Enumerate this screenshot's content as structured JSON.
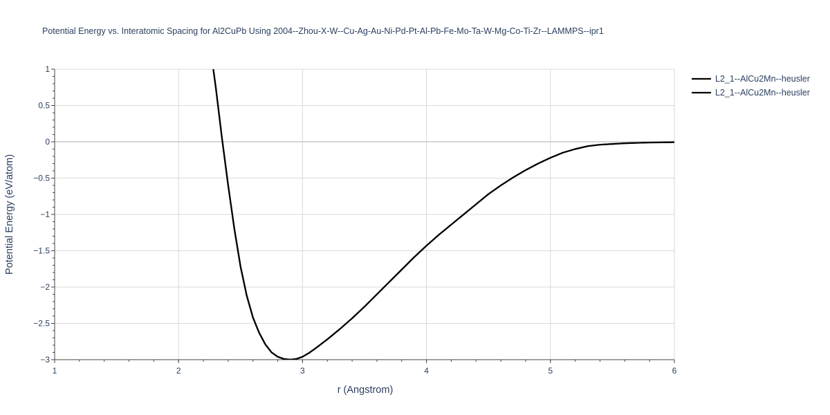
{
  "chart_data": {
    "type": "line",
    "title": "Potential Energy vs. Interatomic Spacing for Al2CuPb Using 2004--Zhou-X-W--Cu-Ag-Au-Ni-Pd-Pt-Al-Pb-Fe-Mo-Ta-W-Mg-Co-Ti-Zr--LAMMPS--ipr1",
    "xlabel": "r (Angstrom)",
    "ylabel": "Potential Energy (eV/atom)",
    "xlim": [
      1,
      6
    ],
    "ylim": [
      -3,
      1
    ],
    "x_ticks": [
      "1",
      "2",
      "3",
      "4",
      "5",
      "6"
    ],
    "y_ticks": [
      "1",
      "0.5",
      "0",
      "−0.5",
      "−1",
      "−1.5",
      "−2",
      "−2.5",
      "−3"
    ],
    "grid": true,
    "legend_position": "top-right",
    "series": [
      {
        "name": "L2_1--AlCu2Mn--heusler",
        "color": "#000000",
        "x": [
          2.28,
          2.3,
          2.35,
          2.4,
          2.45,
          2.5,
          2.55,
          2.6,
          2.65,
          2.7,
          2.75,
          2.8,
          2.85,
          2.9,
          2.95,
          3.0,
          3.05,
          3.1,
          3.2,
          3.3,
          3.4,
          3.5,
          3.6,
          3.7,
          3.8,
          3.9,
          4.0,
          4.1,
          4.2,
          4.3,
          4.4,
          4.5,
          4.6,
          4.7,
          4.8,
          4.9,
          5.0,
          5.1,
          5.2,
          5.3,
          5.4,
          5.5,
          5.6,
          5.7,
          5.8,
          5.9,
          6.0
        ],
        "y": [
          1.0,
          0.75,
          0.05,
          -0.6,
          -1.2,
          -1.72,
          -2.12,
          -2.42,
          -2.63,
          -2.79,
          -2.9,
          -2.96,
          -2.99,
          -3.0,
          -2.99,
          -2.96,
          -2.91,
          -2.85,
          -2.72,
          -2.58,
          -2.43,
          -2.27,
          -2.1,
          -1.93,
          -1.76,
          -1.59,
          -1.43,
          -1.28,
          -1.14,
          -1.0,
          -0.86,
          -0.72,
          -0.6,
          -0.49,
          -0.39,
          -0.3,
          -0.22,
          -0.15,
          -0.1,
          -0.06,
          -0.04,
          -0.03,
          -0.02,
          -0.015,
          -0.01,
          -0.008,
          -0.005
        ]
      },
      {
        "name": "L2_1--AlCu2Mn--heusler",
        "color": "#000000",
        "x": [
          2.28,
          2.3,
          2.35,
          2.4,
          2.45,
          2.5,
          2.55,
          2.6,
          2.65,
          2.7,
          2.75,
          2.8,
          2.85,
          2.9,
          2.95,
          3.0,
          3.05,
          3.1,
          3.2,
          3.3,
          3.4,
          3.5,
          3.6,
          3.7,
          3.8,
          3.9,
          4.0,
          4.1,
          4.2,
          4.3,
          4.4,
          4.5,
          4.6,
          4.7,
          4.8,
          4.9,
          5.0,
          5.1,
          5.2,
          5.3,
          5.4,
          5.5,
          5.6,
          5.7,
          5.8,
          5.9,
          6.0
        ],
        "y": [
          1.0,
          0.75,
          0.05,
          -0.6,
          -1.2,
          -1.72,
          -2.12,
          -2.42,
          -2.63,
          -2.79,
          -2.9,
          -2.96,
          -2.99,
          -3.0,
          -2.99,
          -2.96,
          -2.91,
          -2.85,
          -2.72,
          -2.58,
          -2.43,
          -2.27,
          -2.1,
          -1.93,
          -1.76,
          -1.59,
          -1.43,
          -1.28,
          -1.14,
          -1.0,
          -0.86,
          -0.72,
          -0.6,
          -0.49,
          -0.39,
          -0.3,
          -0.22,
          -0.15,
          -0.1,
          -0.06,
          -0.04,
          -0.03,
          -0.02,
          -0.015,
          -0.01,
          -0.008,
          -0.005
        ]
      }
    ]
  }
}
